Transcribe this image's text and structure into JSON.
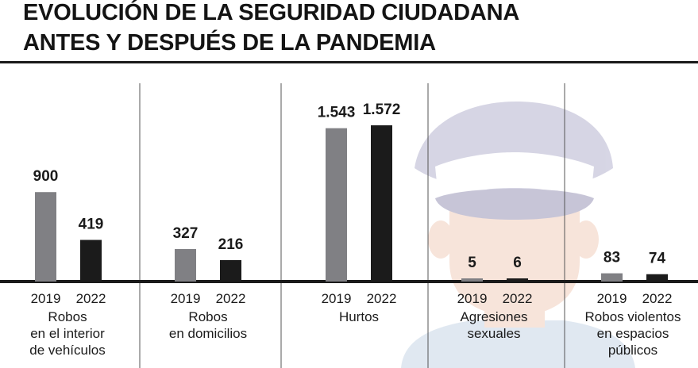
{
  "title": {
    "line1": "EVOLUCIÓN DE LA SEGURIDAD CIUDADANA",
    "line2": "ANTES Y DESPUÉS DE LA PANDEMIA"
  },
  "colors": {
    "y2019": "#808084",
    "y2022": "#1b1b1b",
    "illustration_cap": "#b6b4cf",
    "illustration_skin": "#f2cfbd",
    "illustration_shirt": "#c7d6e6"
  },
  "chart_data": {
    "type": "bar",
    "title": "EVOLUCIÓN DE LA SEGURIDAD CIUDADANA ANTES Y DESPUÉS DE LA PANDEMIA",
    "series_names": [
      "2019",
      "2022"
    ],
    "categories": [
      {
        "label_lines": [
          "Robos",
          "en el interior",
          "de vehículos"
        ],
        "values": [
          900,
          419
        ],
        "labels": [
          "900",
          "419"
        ]
      },
      {
        "label_lines": [
          "Robos",
          "en domicilios"
        ],
        "values": [
          327,
          216
        ],
        "labels": [
          "327",
          "216"
        ]
      },
      {
        "label_lines": [
          "Hurtos"
        ],
        "values": [
          1543,
          1572
        ],
        "labels": [
          "1.543",
          "1.572"
        ]
      },
      {
        "label_lines": [
          "Agresiones",
          "sexuales"
        ],
        "values": [
          5,
          6
        ],
        "labels": [
          "5",
          "6"
        ]
      },
      {
        "label_lines": [
          "Robos violentos",
          "en espacios",
          "públicos"
        ],
        "values": [
          83,
          74
        ],
        "labels": [
          "83",
          "74"
        ]
      }
    ],
    "ylim": [
      0,
      1600
    ],
    "xlabel": "",
    "ylabel": ""
  }
}
